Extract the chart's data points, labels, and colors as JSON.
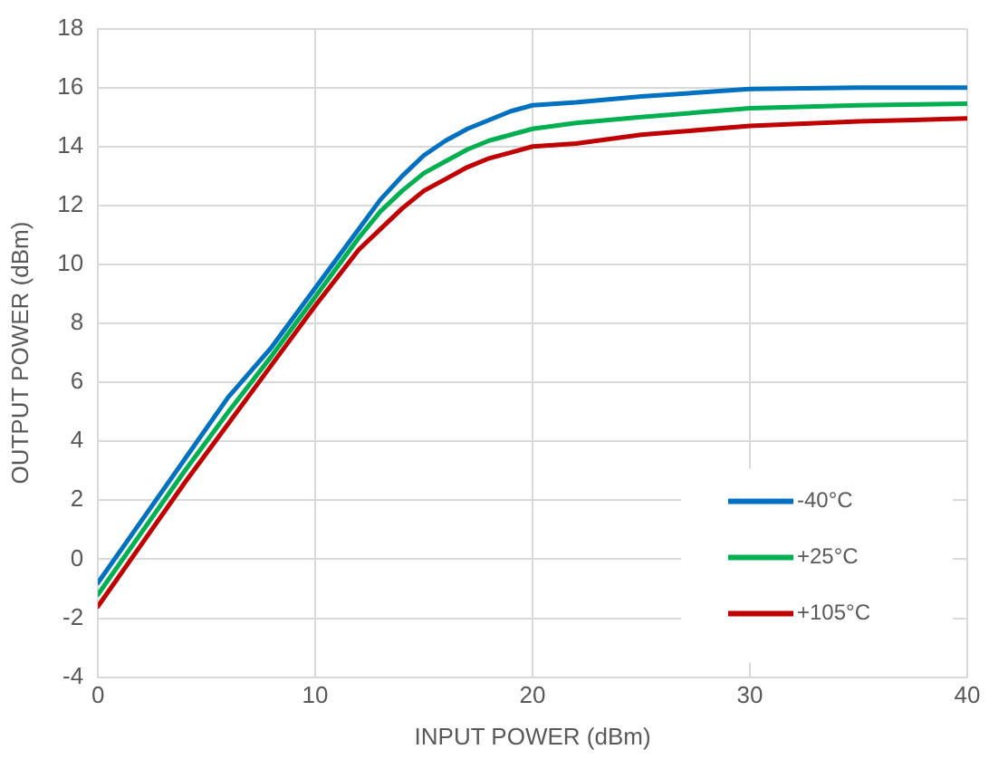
{
  "chart_data": {
    "type": "line",
    "xlabel": "INPUT POWER (dBm)",
    "ylabel": "OUTPUT POWER (dBm)",
    "x": [
      0,
      2,
      4,
      6,
      8,
      10,
      12,
      13,
      14,
      15,
      16,
      17,
      18,
      19,
      20,
      22,
      25,
      30,
      35,
      40
    ],
    "series": [
      {
        "name": "-40°C",
        "color": "#0070c0",
        "values": [
          -0.8,
          1.3,
          3.4,
          5.5,
          7.2,
          9.2,
          11.2,
          12.2,
          13.0,
          13.7,
          14.2,
          14.6,
          14.9,
          15.2,
          15.4,
          15.5,
          15.7,
          15.95,
          16.0,
          16.0
        ]
      },
      {
        "name": "+25°C",
        "color": "#00b050",
        "values": [
          -1.2,
          0.9,
          3.0,
          5.0,
          6.9,
          8.9,
          10.9,
          11.8,
          12.5,
          13.1,
          13.5,
          13.9,
          14.2,
          14.4,
          14.6,
          14.8,
          15.0,
          15.3,
          15.4,
          15.45
        ]
      },
      {
        "name": "+105°C",
        "color": "#c00000",
        "values": [
          -1.6,
          0.5,
          2.6,
          4.6,
          6.6,
          8.6,
          10.5,
          11.2,
          11.9,
          12.5,
          12.9,
          13.3,
          13.6,
          13.8,
          14.0,
          14.1,
          14.4,
          14.7,
          14.85,
          14.95
        ]
      }
    ],
    "xlim": [
      0,
      40
    ],
    "xticks": [
      0,
      10,
      20,
      30,
      40
    ],
    "ylim": [
      -4,
      18
    ],
    "yticks": [
      -4,
      -2,
      0,
      2,
      4,
      6,
      8,
      10,
      12,
      14,
      16,
      18
    ],
    "grid": true,
    "legend": "bottom right",
    "marker": "none",
    "line_style": "solid"
  }
}
